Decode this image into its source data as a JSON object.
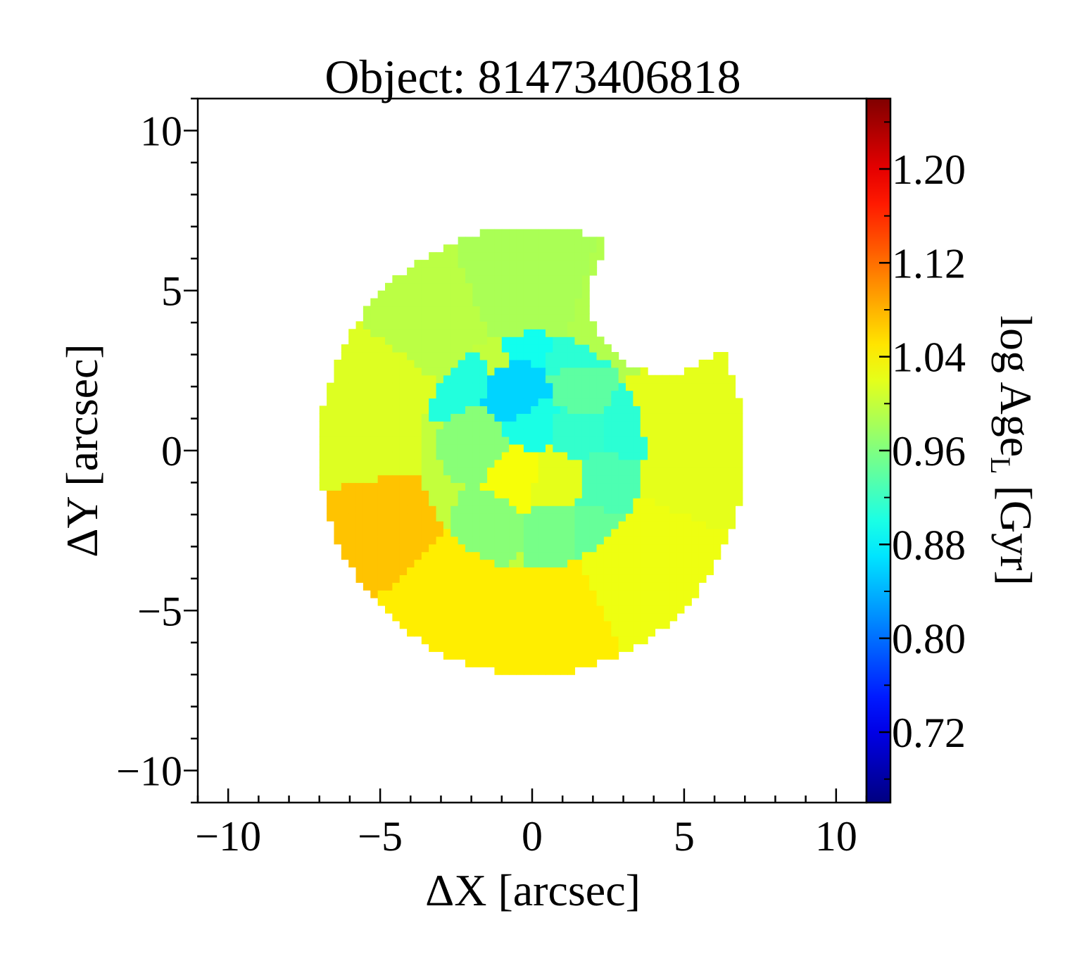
{
  "chart_data": {
    "type": "heatmap",
    "title": "Object: 81473406818",
    "xlabel": "ΔX [arcsec]",
    "ylabel": "ΔY [arcsec]",
    "colorbar_label": "log Age",
    "colorbar_label_sub": "L",
    "colorbar_label_unit": " [Gyr]",
    "xlim": [
      -11,
      11
    ],
    "ylim": [
      -11,
      11
    ],
    "x_ticks": [
      -10,
      -5,
      0,
      5,
      10
    ],
    "y_ticks": [
      -10,
      -5,
      0,
      5,
      10
    ],
    "x_tick_labels": [
      "−10",
      "−5",
      "0",
      "5",
      "10"
    ],
    "y_tick_labels": [
      "−10",
      "−5",
      "0",
      "5",
      "10"
    ],
    "colorbar_range": [
      0.66,
      1.26
    ],
    "colorbar_ticks": [
      0.72,
      0.8,
      0.88,
      0.96,
      1.04,
      1.12,
      1.2
    ],
    "colorbar_tick_labels": [
      "0.72",
      "0.80",
      "0.88",
      "0.96",
      "1.04",
      "1.12",
      "1.20"
    ],
    "colormap": "jet",
    "grid": false,
    "field_center": [
      0,
      0
    ],
    "field_radius": 7.0,
    "masked_wedge_center": [
      4.3,
      4.8
    ],
    "masked_wedge_radius": 2.4,
    "regions": [
      {
        "name": "outer-east-upper",
        "angle_from": -22,
        "angle_to": 35,
        "value": 1.02
      },
      {
        "name": "outer-north-east",
        "angle_from": 35,
        "angle_to": 72,
        "value": 0.99
      },
      {
        "name": "outer-north",
        "angle_from": 72,
        "angle_to": 112,
        "value": 0.985
      },
      {
        "name": "outer-north-west",
        "angle_from": 112,
        "angle_to": 145,
        "value": 0.995
      },
      {
        "name": "outer-west",
        "angle_from": 145,
        "angle_to": 190,
        "value": 1.015
      },
      {
        "name": "outer-south-west",
        "angle_from": 190,
        "angle_to": 222,
        "value": 1.07
      },
      {
        "name": "outer-south",
        "angle_from": 222,
        "angle_to": 295,
        "value": 1.045
      },
      {
        "name": "outer-south-east",
        "angle_from": 295,
        "angle_to": 338,
        "value": 1.025
      }
    ],
    "center_region_value": 1.0,
    "center_cells": [
      {
        "x": 0.2,
        "y": 3.9,
        "value": 0.895
      },
      {
        "x": 1.4,
        "y": 3.3,
        "value": 0.91
      },
      {
        "x": -2.8,
        "y": 2.2,
        "value": 0.905
      },
      {
        "x": 0.0,
        "y": 1.0,
        "value": 0.9
      },
      {
        "x": 1.5,
        "y": 0.7,
        "value": 0.915
      },
      {
        "x": 3.2,
        "y": 0.8,
        "value": 0.91
      },
      {
        "x": -0.3,
        "y": 1.5,
        "value": 0.86
      },
      {
        "x": 2.4,
        "y": -1.0,
        "value": 0.93
      },
      {
        "x": -1.4,
        "y": -2.3,
        "value": 0.965
      },
      {
        "x": 0.8,
        "y": -2.6,
        "value": 0.955
      },
      {
        "x": 2.0,
        "y": -2.6,
        "value": 0.945
      },
      {
        "x": -0.5,
        "y": -0.8,
        "value": 1.03
      },
      {
        "x": 0.7,
        "y": -0.9,
        "value": 1.02
      },
      {
        "x": -1.8,
        "y": 0.2,
        "value": 0.965
      },
      {
        "x": 1.6,
        "y": 1.8,
        "value": 0.94
      }
    ]
  }
}
